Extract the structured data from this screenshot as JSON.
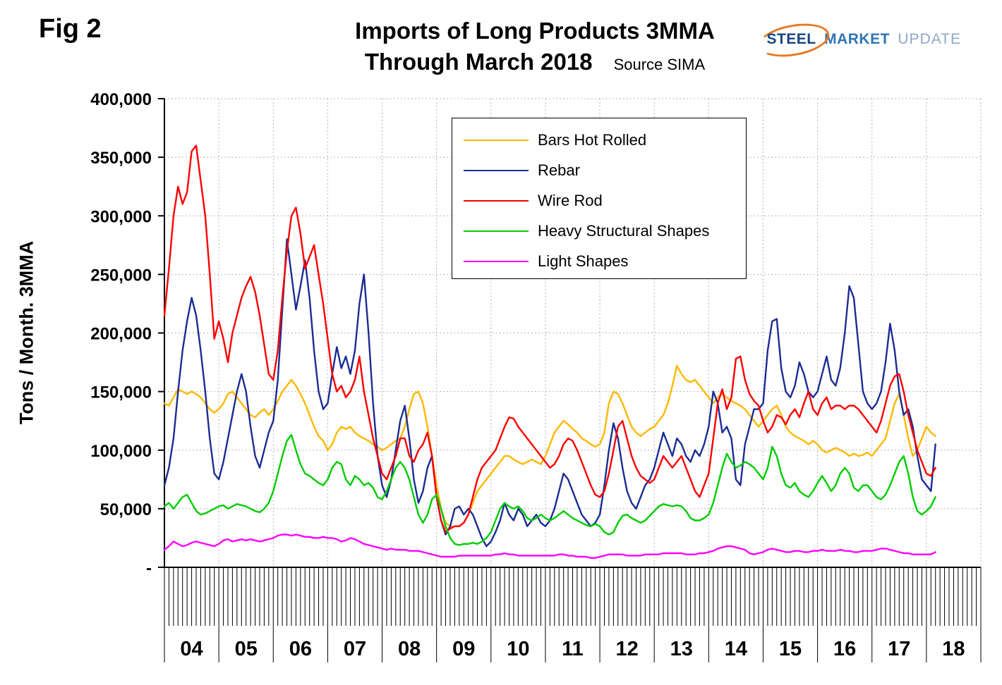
{
  "figure_label": "Fig 2",
  "title_line1": "Imports of Long Products 3MMA",
  "title_line2": "Through March 2018",
  "source": "Source SIMA",
  "logo": {
    "steel": "STEEL",
    "market": "MARKET",
    "update": "UPDATE",
    "accent_color": "#E87722"
  },
  "chart_data": {
    "type": "line",
    "title": "Imports of Long Products 3MMA Through March 2018",
    "xlabel": "",
    "ylabel": "Tons / Month. 3MMA",
    "ylim": [
      0,
      400000
    ],
    "y_tick_step": 50000,
    "grid": "dotted",
    "legend_position": "upper-center",
    "x_start": "2004-01",
    "x_end": "2018-03",
    "x_months_domain": 180,
    "y_ticks": [
      {
        "value": 0,
        "label": "-"
      },
      {
        "value": 50000,
        "label": "50,000"
      },
      {
        "value": 100000,
        "label": "100,000"
      },
      {
        "value": 150000,
        "label": "150,000"
      },
      {
        "value": 200000,
        "label": "200,000"
      },
      {
        "value": 250000,
        "label": "250,000"
      },
      {
        "value": 300000,
        "label": "300,000"
      },
      {
        "value": 350000,
        "label": "350,000"
      },
      {
        "value": 400000,
        "label": "400,000"
      }
    ],
    "x_year_labels": [
      "04",
      "05",
      "06",
      "07",
      "08",
      "09",
      "10",
      "11",
      "12",
      "13",
      "14",
      "15",
      "16",
      "17",
      "18"
    ],
    "series": [
      {
        "name": "Bars Hot Rolled",
        "color": "#FFB800",
        "values": [
          140000,
          138000,
          145000,
          152000,
          150000,
          148000,
          150000,
          148000,
          145000,
          140000,
          135000,
          132000,
          135000,
          140000,
          148000,
          150000,
          145000,
          140000,
          135000,
          130000,
          128000,
          132000,
          135000,
          130000,
          135000,
          142000,
          150000,
          155000,
          160000,
          155000,
          148000,
          140000,
          130000,
          120000,
          112000,
          108000,
          100000,
          105000,
          115000,
          120000,
          118000,
          120000,
          115000,
          112000,
          110000,
          108000,
          105000,
          103000,
          100000,
          102000,
          105000,
          108000,
          110000,
          120000,
          135000,
          148000,
          150000,
          140000,
          120000,
          95000,
          70000,
          50000,
          38000,
          35000,
          35000,
          35000,
          38000,
          45000,
          55000,
          65000,
          70000,
          75000,
          80000,
          85000,
          90000,
          95000,
          95000,
          92000,
          90000,
          88000,
          90000,
          92000,
          90000,
          88000,
          95000,
          105000,
          115000,
          120000,
          125000,
          122000,
          118000,
          115000,
          110000,
          108000,
          105000,
          103000,
          105000,
          115000,
          140000,
          150000,
          148000,
          140000,
          130000,
          120000,
          115000,
          112000,
          115000,
          118000,
          120000,
          125000,
          130000,
          140000,
          155000,
          172000,
          165000,
          160000,
          158000,
          160000,
          155000,
          150000,
          145000,
          140000,
          145000,
          148000,
          145000,
          142000,
          140000,
          138000,
          135000,
          130000,
          125000,
          120000,
          125000,
          130000,
          135000,
          138000,
          130000,
          120000,
          115000,
          112000,
          110000,
          108000,
          105000,
          108000,
          105000,
          100000,
          98000,
          100000,
          102000,
          100000,
          98000,
          95000,
          97000,
          95000,
          96000,
          98000,
          95000,
          100000,
          105000,
          110000,
          125000,
          140000,
          148000,
          130000,
          110000,
          95000,
          100000,
          110000,
          120000,
          115000,
          112000
        ]
      },
      {
        "name": "Rebar",
        "color": "#1B2C94",
        "values": [
          70000,
          85000,
          110000,
          150000,
          185000,
          210000,
          230000,
          215000,
          185000,
          150000,
          110000,
          80000,
          75000,
          90000,
          110000,
          130000,
          150000,
          165000,
          150000,
          120000,
          95000,
          85000,
          100000,
          115000,
          125000,
          160000,
          220000,
          280000,
          250000,
          220000,
          240000,
          262000,
          230000,
          185000,
          150000,
          135000,
          140000,
          165000,
          188000,
          170000,
          180000,
          165000,
          185000,
          225000,
          250000,
          200000,
          140000,
          95000,
          70000,
          60000,
          75000,
          100000,
          125000,
          138000,
          110000,
          75000,
          55000,
          65000,
          85000,
          95000,
          60000,
          40000,
          28000,
          35000,
          50000,
          52000,
          45000,
          50000,
          45000,
          35000,
          25000,
          18000,
          22000,
          30000,
          40000,
          55000,
          45000,
          40000,
          50000,
          45000,
          35000,
          40000,
          45000,
          38000,
          35000,
          40000,
          50000,
          65000,
          80000,
          75000,
          65000,
          55000,
          45000,
          40000,
          35000,
          38000,
          45000,
          70000,
          100000,
          123000,
          110000,
          85000,
          65000,
          55000,
          50000,
          60000,
          70000,
          75000,
          85000,
          100000,
          115000,
          105000,
          95000,
          110000,
          105000,
          95000,
          90000,
          100000,
          95000,
          105000,
          120000,
          150000,
          140000,
          115000,
          120000,
          110000,
          75000,
          70000,
          105000,
          120000,
          135000,
          135000,
          140000,
          185000,
          210000,
          212000,
          170000,
          150000,
          145000,
          155000,
          175000,
          165000,
          150000,
          145000,
          150000,
          165000,
          180000,
          160000,
          155000,
          170000,
          200000,
          240000,
          230000,
          190000,
          150000,
          140000,
          135000,
          140000,
          150000,
          175000,
          208000,
          185000,
          150000,
          130000,
          135000,
          120000,
          95000,
          75000,
          70000,
          65000,
          105000
        ]
      },
      {
        "name": "Wire Rod",
        "color": "#FF0000",
        "values": [
          215000,
          255000,
          300000,
          325000,
          310000,
          320000,
          355000,
          360000,
          330000,
          300000,
          250000,
          195000,
          210000,
          195000,
          175000,
          200000,
          215000,
          230000,
          240000,
          248000,
          235000,
          215000,
          190000,
          165000,
          160000,
          185000,
          230000,
          270000,
          300000,
          307000,
          285000,
          255000,
          265000,
          275000,
          250000,
          225000,
          195000,
          165000,
          150000,
          155000,
          145000,
          150000,
          160000,
          180000,
          150000,
          130000,
          110000,
          95000,
          80000,
          75000,
          85000,
          95000,
          110000,
          110000,
          95000,
          90000,
          100000,
          105000,
          115000,
          95000,
          60000,
          40000,
          30000,
          33000,
          35000,
          35000,
          38000,
          45000,
          60000,
          75000,
          85000,
          90000,
          95000,
          100000,
          110000,
          120000,
          128000,
          127000,
          120000,
          115000,
          110000,
          105000,
          100000,
          95000,
          90000,
          85000,
          88000,
          95000,
          105000,
          110000,
          108000,
          100000,
          90000,
          80000,
          70000,
          62000,
          60000,
          65000,
          80000,
          100000,
          120000,
          125000,
          110000,
          95000,
          85000,
          78000,
          75000,
          72000,
          75000,
          85000,
          95000,
          90000,
          85000,
          90000,
          95000,
          85000,
          75000,
          65000,
          60000,
          70000,
          80000,
          110000,
          140000,
          152000,
          135000,
          145000,
          178000,
          180000,
          160000,
          148000,
          142000,
          138000,
          125000,
          115000,
          120000,
          130000,
          128000,
          122000,
          130000,
          135000,
          128000,
          140000,
          150000,
          135000,
          130000,
          140000,
          145000,
          135000,
          138000,
          138000,
          135000,
          138000,
          138000,
          135000,
          130000,
          125000,
          120000,
          115000,
          125000,
          140000,
          155000,
          163000,
          165000,
          150000,
          130000,
          115000,
          100000,
          90000,
          80000,
          78000,
          85000
        ]
      },
      {
        "name": "Heavy Structural Shapes",
        "color": "#00CC00",
        "values": [
          52000,
          55000,
          50000,
          55000,
          60000,
          62000,
          55000,
          48000,
          45000,
          46000,
          48000,
          50000,
          52000,
          53000,
          50000,
          52000,
          54000,
          53000,
          52000,
          50000,
          48000,
          47000,
          50000,
          55000,
          65000,
          80000,
          95000,
          108000,
          113000,
          100000,
          88000,
          80000,
          78000,
          75000,
          72000,
          70000,
          75000,
          85000,
          90000,
          88000,
          75000,
          70000,
          78000,
          75000,
          70000,
          72000,
          68000,
          60000,
          58000,
          65000,
          75000,
          85000,
          90000,
          85000,
          75000,
          60000,
          45000,
          38000,
          45000,
          58000,
          62000,
          50000,
          35000,
          25000,
          20000,
          19000,
          20000,
          20000,
          21000,
          20000,
          22000,
          25000,
          30000,
          40000,
          50000,
          55000,
          52000,
          50000,
          52000,
          48000,
          42000,
          40000,
          42000,
          45000,
          42000,
          40000,
          42000,
          45000,
          48000,
          45000,
          42000,
          40000,
          38000,
          36000,
          35000,
          37000,
          35000,
          30000,
          28000,
          30000,
          38000,
          44000,
          45000,
          42000,
          40000,
          38000,
          40000,
          44000,
          48000,
          52000,
          54000,
          53000,
          52000,
          53000,
          52000,
          48000,
          42000,
          40000,
          40000,
          42000,
          45000,
          55000,
          70000,
          85000,
          97000,
          90000,
          85000,
          87000,
          90000,
          88000,
          85000,
          80000,
          75000,
          85000,
          103000,
          95000,
          80000,
          70000,
          68000,
          72000,
          65000,
          62000,
          60000,
          65000,
          72000,
          78000,
          72000,
          65000,
          70000,
          80000,
          85000,
          80000,
          68000,
          65000,
          70000,
          70000,
          65000,
          60000,
          58000,
          62000,
          70000,
          80000,
          90000,
          95000,
          80000,
          60000,
          48000,
          45000,
          48000,
          52000,
          60000
        ]
      },
      {
        "name": "Light Shapes",
        "color": "#FF00FF",
        "values": [
          15000,
          18000,
          22000,
          20000,
          18000,
          19000,
          21000,
          22000,
          21000,
          20000,
          19000,
          18000,
          20000,
          23000,
          24000,
          22000,
          23000,
          24000,
          23000,
          24000,
          23000,
          22000,
          23000,
          24000,
          25000,
          27000,
          28000,
          28000,
          27000,
          28000,
          27000,
          26000,
          26000,
          25000,
          25000,
          26000,
          25000,
          25000,
          24000,
          22000,
          23000,
          25000,
          24000,
          22000,
          20000,
          19000,
          18000,
          17000,
          16000,
          15000,
          16000,
          15000,
          15000,
          15000,
          14000,
          14000,
          14000,
          13000,
          12000,
          11000,
          10000,
          9000,
          9000,
          9000,
          9000,
          10000,
          10000,
          10000,
          10000,
          10000,
          10000,
          10000,
          10000,
          11000,
          11000,
          12000,
          11000,
          11000,
          10000,
          10000,
          10000,
          10000,
          10000,
          10000,
          10000,
          10000,
          10000,
          11000,
          11000,
          10000,
          10000,
          9000,
          9000,
          9000,
          8000,
          8000,
          9000,
          10000,
          11000,
          11000,
          11000,
          11000,
          10000,
          10000,
          10000,
          10000,
          11000,
          11000,
          11000,
          11000,
          12000,
          12000,
          12000,
          12000,
          12000,
          11000,
          11000,
          11000,
          12000,
          12000,
          13000,
          14000,
          16000,
          17000,
          18000,
          18000,
          17000,
          16000,
          15000,
          12000,
          11000,
          12000,
          13000,
          15000,
          16000,
          15000,
          14000,
          13000,
          13000,
          14000,
          14000,
          13000,
          13000,
          14000,
          14000,
          15000,
          14000,
          14000,
          14000,
          15000,
          14000,
          14000,
          13000,
          13000,
          14000,
          14000,
          14000,
          15000,
          16000,
          16000,
          15000,
          14000,
          13000,
          12000,
          12000,
          11000,
          11000,
          11000,
          11000,
          11000,
          13000
        ]
      }
    ]
  }
}
